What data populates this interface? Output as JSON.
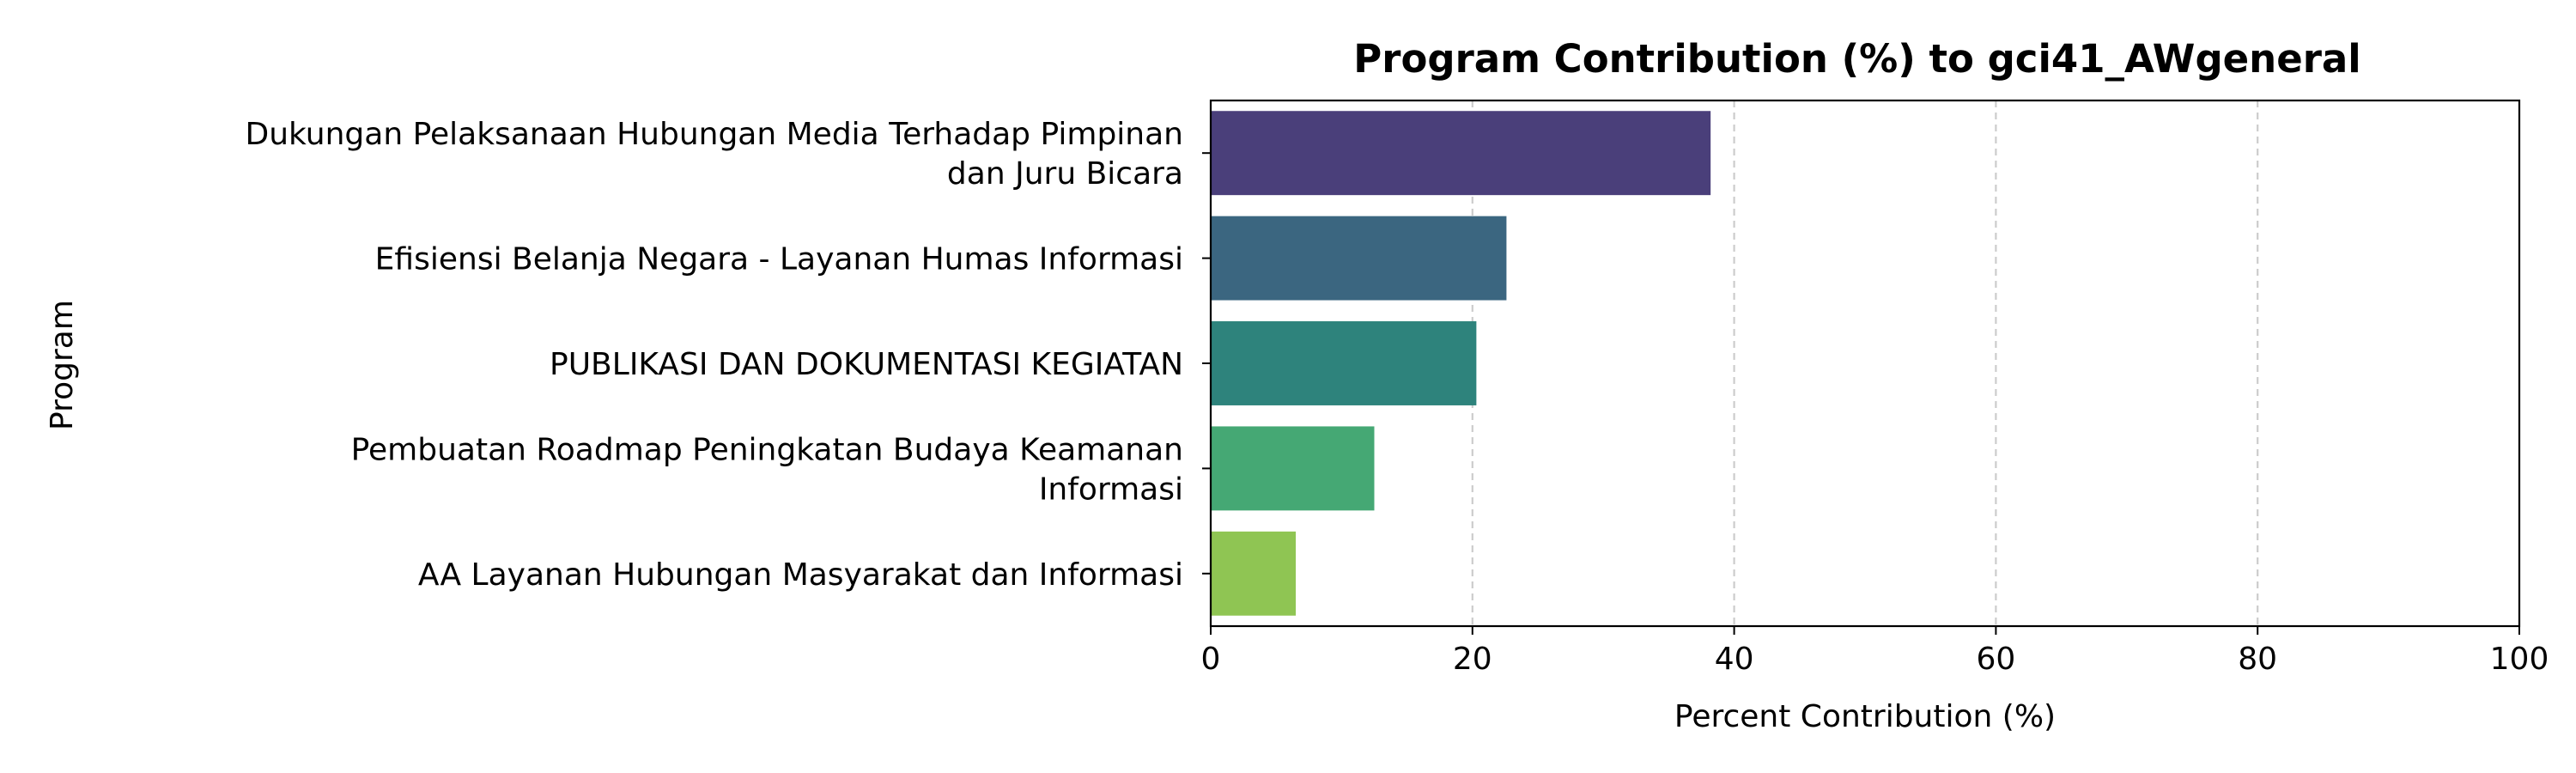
{
  "chart_data": {
    "type": "bar",
    "orientation": "horizontal",
    "title": "Program Contribution (%) to gci41_AWgeneral",
    "xlabel": "Percent Contribution (%)",
    "ylabel": "Program",
    "xlim": [
      0,
      100
    ],
    "xticks": [
      "0",
      "20",
      "40",
      "60",
      "80",
      "100"
    ],
    "grid": "x-dashed",
    "categories": [
      [
        "Dukungan Pelaksanaan Hubungan Media Terhadap Pimpinan",
        "dan Juru Bicara"
      ],
      [
        "Efisiensi Belanja Negara - Layanan Humas Informasi"
      ],
      [
        "PUBLIKASI DAN DOKUMENTASI KEGIATAN"
      ],
      [
        "Pembuatan Roadmap Peningkatan Budaya Keamanan",
        "Informasi"
      ],
      [
        "AA Layanan Hubungan Masyarakat dan Informasi"
      ]
    ],
    "values": [
      38.2,
      22.6,
      20.3,
      12.5,
      6.5
    ],
    "colors": [
      "#4a3f7a",
      "#3b6680",
      "#2e837c",
      "#45a874",
      "#8fc553"
    ]
  }
}
